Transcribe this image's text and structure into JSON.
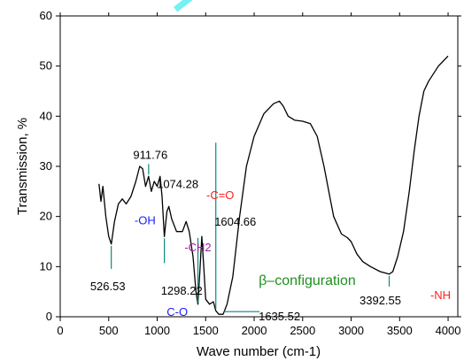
{
  "chart_data": {
    "type": "line",
    "title": "",
    "xlabel": "Wave number (cm-1)",
    "ylabel": "Transmission, %",
    "xlim": [
      0,
      4100
    ],
    "ylim": [
      0,
      60
    ],
    "xticks": [
      "0",
      "500",
      "1000",
      "1500",
      "2000",
      "2500",
      "3000",
      "3500",
      "4000"
    ],
    "yticks": [
      "0",
      "10",
      "20",
      "30",
      "40",
      "50",
      "60"
    ],
    "grid": false,
    "series": [
      {
        "color": "#000000",
        "points": [
          [
            400,
            26.5
          ],
          [
            420,
            23
          ],
          [
            440,
            26
          ],
          [
            470,
            20
          ],
          [
            500,
            16
          ],
          [
            526.53,
            14.5
          ],
          [
            560,
            19
          ],
          [
            600,
            22.5
          ],
          [
            640,
            23.5
          ],
          [
            680,
            22.5
          ],
          [
            730,
            24
          ],
          [
            780,
            27
          ],
          [
            820,
            30
          ],
          [
            850,
            29.5
          ],
          [
            880,
            26
          ],
          [
            911.76,
            28
          ],
          [
            940,
            25
          ],
          [
            970,
            27
          ],
          [
            1000,
            26
          ],
          [
            1030,
            28
          ],
          [
            1050,
            24
          ],
          [
            1074.28,
            16
          ],
          [
            1100,
            21
          ],
          [
            1120,
            22
          ],
          [
            1150,
            19.5
          ],
          [
            1200,
            17
          ],
          [
            1260,
            17
          ],
          [
            1298.22,
            19
          ],
          [
            1330,
            17
          ],
          [
            1370,
            12
          ],
          [
            1400,
            5
          ],
          [
            1420,
            2.5
          ],
          [
            1440,
            9
          ],
          [
            1460,
            16
          ],
          [
            1480,
            10
          ],
          [
            1500,
            3.5
          ],
          [
            1540,
            2.5
          ],
          [
            1580,
            3
          ],
          [
            1604.66,
            1.2
          ],
          [
            1635.52,
            0.5
          ],
          [
            1680,
            0.5
          ],
          [
            1720,
            2.5
          ],
          [
            1780,
            8
          ],
          [
            1850,
            20
          ],
          [
            1920,
            30
          ],
          [
            2000,
            36
          ],
          [
            2100,
            40.5
          ],
          [
            2200,
            42.5
          ],
          [
            2260,
            43
          ],
          [
            2300,
            42
          ],
          [
            2350,
            40
          ],
          [
            2420,
            39.2
          ],
          [
            2500,
            39
          ],
          [
            2580,
            38.5
          ],
          [
            2650,
            36
          ],
          [
            2720,
            30
          ],
          [
            2780,
            24
          ],
          [
            2820,
            20
          ],
          [
            2900,
            16.5
          ],
          [
            2960,
            15.8
          ],
          [
            3000,
            15
          ],
          [
            3060,
            12.5
          ],
          [
            3120,
            11
          ],
          [
            3200,
            10
          ],
          [
            3300,
            9
          ],
          [
            3392.55,
            8.5
          ],
          [
            3430,
            9
          ],
          [
            3480,
            12
          ],
          [
            3540,
            17
          ],
          [
            3600,
            25
          ],
          [
            3650,
            33
          ],
          [
            3700,
            40
          ],
          [
            3750,
            45
          ],
          [
            3800,
            47
          ],
          [
            3850,
            48.5
          ],
          [
            3900,
            50
          ],
          [
            3950,
            51
          ],
          [
            4000,
            52
          ]
        ]
      }
    ],
    "annotations": [
      {
        "text": "526.53",
        "x": 526.53,
        "color": "#000000"
      },
      {
        "text": "911.76",
        "x": 911.76,
        "color": "#000000"
      },
      {
        "text": "-OH",
        "x": 911.76,
        "color": "#1a1aff"
      },
      {
        "text": "1074.28",
        "x": 1074.28,
        "color": "#000000"
      },
      {
        "text": "1298.22",
        "x": 1298.22,
        "color": "#000000"
      },
      {
        "text": "C-O",
        "x": 1298.22,
        "color": "#1a1aff"
      },
      {
        "text": "-CH2",
        "x": 1420,
        "color": "#9b1fa0"
      },
      {
        "text": "1604.66",
        "x": 1604.66,
        "color": "#000000"
      },
      {
        "text": "-C=O",
        "x": 1604.66,
        "color": "#ff2020"
      },
      {
        "text": "1635.52",
        "x": 1635.52,
        "color": "#000000"
      },
      {
        "text": "β–configuration",
        "x": 1635.52,
        "color": "#1f8f1f"
      },
      {
        "text": "3392.55",
        "x": 3392.55,
        "color": "#000000"
      },
      {
        "text": "-NH",
        "x": 3392.55,
        "color": "#ff2020"
      }
    ],
    "colors": {
      "leader_line": "#0a8a7a",
      "watermark": "#00e5ee"
    }
  }
}
